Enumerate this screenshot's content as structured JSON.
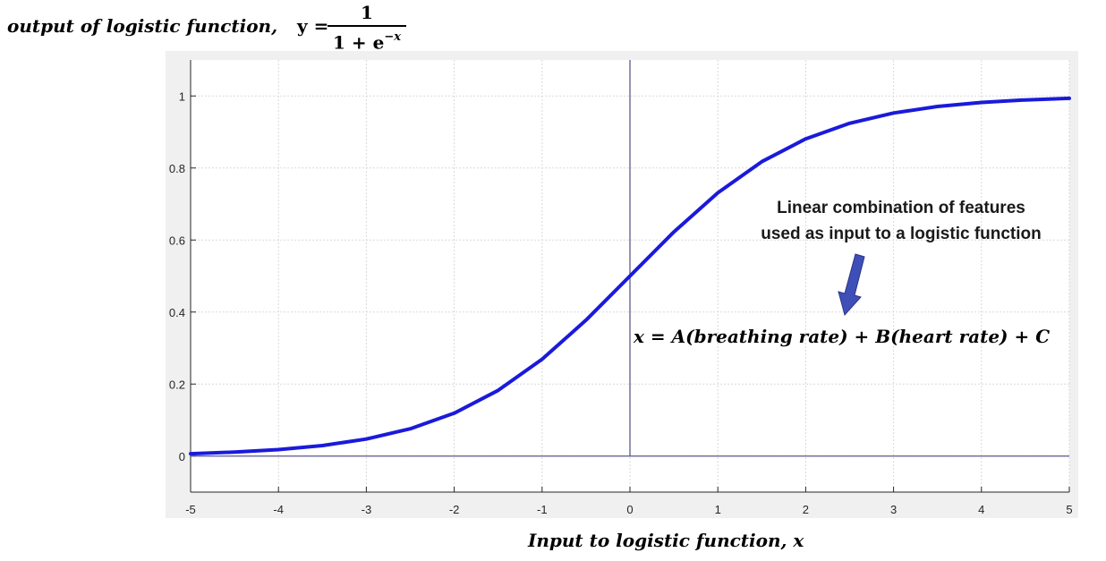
{
  "chart_data": {
    "type": "line",
    "ylabel": "output of logistic function,",
    "ylabel_equation": {
      "lhs": "y =",
      "numerator": "1",
      "denominator_base": "1 + e",
      "denominator_exponent": "−x"
    },
    "xlabel": "Input to logistic function, x",
    "xlim": [
      -5,
      5
    ],
    "ylim": [
      -0.1,
      1.1
    ],
    "xticks": [
      -5,
      -4,
      -3,
      -2,
      -1,
      0,
      1,
      2,
      3,
      4,
      5
    ],
    "yticks": [
      0,
      0.2,
      0.4,
      0.6,
      0.8,
      1
    ],
    "xtick_labels": [
      "-5",
      "-4",
      "-3",
      "-2",
      "-1",
      "0",
      "1",
      "2",
      "3",
      "4",
      "5"
    ],
    "ytick_labels": [
      "0",
      "0.2",
      "0.4",
      "0.6",
      "0.8",
      "1"
    ],
    "grid": true,
    "series": [
      {
        "color": "#1a1adb",
        "x": [
          -5,
          -4.5,
          -4,
          -3.5,
          -3,
          -2.5,
          -2,
          -1.5,
          -1,
          -0.5,
          0,
          0.5,
          1,
          1.5,
          2,
          2.5,
          3,
          3.5,
          4,
          4.5,
          5
        ],
        "y": [
          0.0067,
          0.011,
          0.018,
          0.0293,
          0.0474,
          0.0759,
          0.1192,
          0.1824,
          0.2689,
          0.3775,
          0.5,
          0.6225,
          0.7311,
          0.8176,
          0.8808,
          0.9241,
          0.9526,
          0.9707,
          0.982,
          0.989,
          0.9933
        ]
      }
    ],
    "reference_lines": [
      {
        "orientation": "vertical",
        "x": 0,
        "color": "#5a5a8c"
      },
      {
        "orientation": "horizontal",
        "y": 0,
        "color": "#5a5a8c"
      }
    ],
    "annotation": {
      "lines": [
        "Linear combination of features",
        "used as input to a logistic function"
      ],
      "arrow_color": "#3f4fb8",
      "equation": "x = A(breathing rate) + B(heart rate) + C"
    },
    "colors": {
      "outer_background": "#f0f0f0",
      "plot_background": "#ffffff",
      "grid": "#d9d9d9",
      "axis": "#262626"
    }
  }
}
